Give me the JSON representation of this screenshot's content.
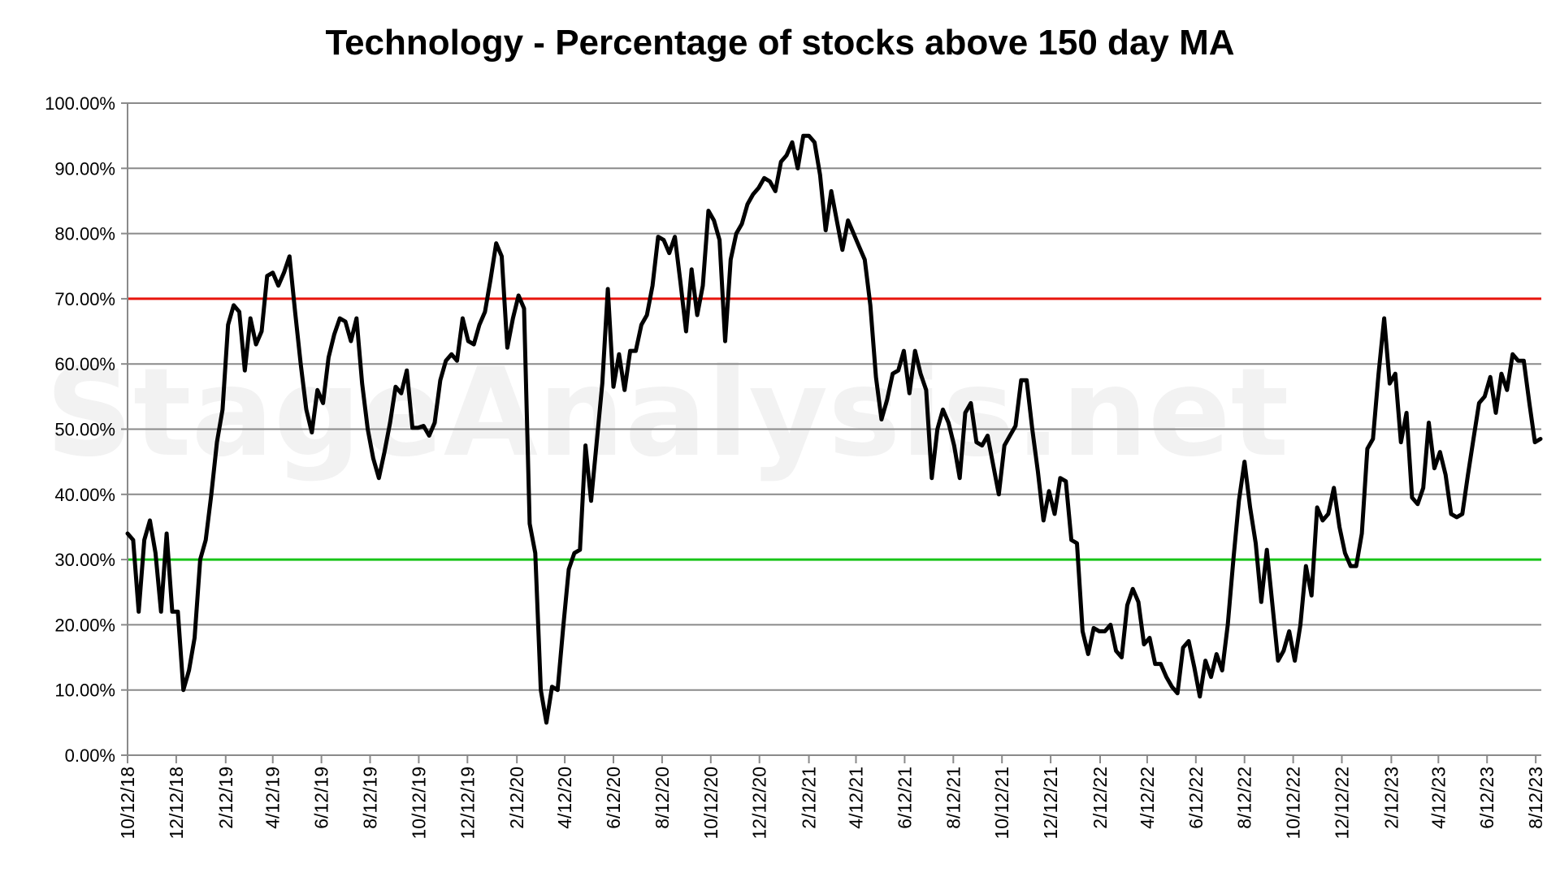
{
  "chart_data": {
    "type": "line",
    "title": "Technology - Percentage of stocks above 150 day MA",
    "watermark": "© StageAnalysis.net",
    "xlabel": "",
    "ylabel": "",
    "ylim": [
      0,
      100
    ],
    "y_tick_values": [
      0,
      10,
      20,
      30,
      40,
      50,
      60,
      70,
      80,
      90,
      100
    ],
    "y_tick_labels": [
      "0.00%",
      "10.00%",
      "20.00%",
      "30.00%",
      "40.00%",
      "50.00%",
      "60.00%",
      "70.00%",
      "80.00%",
      "90.00%",
      "100.00%"
    ],
    "x_tick_labels": [
      "10/12/18",
      "12/12/18",
      "2/12/19",
      "4/12/19",
      "6/12/19",
      "8/12/19",
      "10/12/19",
      "12/12/19",
      "2/12/20",
      "4/12/20",
      "6/12/20",
      "8/12/20",
      "10/12/20",
      "12/12/20",
      "2/12/21",
      "4/12/21",
      "6/12/21",
      "8/12/21",
      "10/12/21",
      "12/12/21",
      "2/12/22",
      "4/12/22",
      "6/12/22",
      "8/12/22",
      "10/12/22",
      "12/12/22",
      "2/12/23",
      "4/12/23",
      "6/12/23",
      "8/12/23"
    ],
    "x_range": [
      "10/12/18",
      "8/19/23"
    ],
    "grid": true,
    "reference_lines": [
      {
        "value": 70,
        "color": "#e8140c"
      },
      {
        "value": 30,
        "color": "#18c418"
      }
    ],
    "series_color": "#000000",
    "series": [
      {
        "name": "",
        "x": [
          "10/12/18",
          "10/19/18",
          "10/26/18",
          "11/2/18",
          "11/9/18",
          "11/16/18",
          "11/23/18",
          "11/30/18",
          "12/7/18",
          "12/14/18",
          "12/21/18",
          "12/28/18",
          "1/4/19",
          "1/11/19",
          "1/18/19",
          "1/25/19",
          "2/1/19",
          "2/8/19",
          "2/15/19",
          "2/22/19",
          "3/1/19",
          "3/8/19",
          "3/15/19",
          "3/22/19",
          "3/29/19",
          "4/5/19",
          "4/12/19",
          "4/19/19",
          "4/26/19",
          "5/3/19",
          "5/10/19",
          "5/17/19",
          "5/24/19",
          "5/31/19",
          "6/7/19",
          "6/14/19",
          "6/21/19",
          "6/28/19",
          "7/5/19",
          "7/12/19",
          "7/19/19",
          "7/26/19",
          "8/2/19",
          "8/9/19",
          "8/16/19",
          "8/23/19",
          "8/30/19",
          "9/6/19",
          "9/13/19",
          "9/20/19",
          "9/27/19",
          "10/4/19",
          "10/11/19",
          "10/18/19",
          "10/25/19",
          "11/1/19",
          "11/8/19",
          "11/15/19",
          "11/22/19",
          "11/29/19",
          "12/6/19",
          "12/13/19",
          "12/20/19",
          "12/27/19",
          "1/3/20",
          "1/10/20",
          "1/17/20",
          "1/24/20",
          "1/31/20",
          "2/7/20",
          "2/14/20",
          "2/21/20",
          "2/28/20",
          "3/6/20",
          "3/13/20",
          "3/20/20",
          "3/27/20",
          "4/3/20",
          "4/10/20",
          "4/17/20",
          "4/24/20",
          "5/1/20",
          "5/8/20",
          "5/15/20",
          "5/22/20",
          "5/29/20",
          "6/5/20",
          "6/12/20",
          "6/19/20",
          "6/26/20",
          "7/3/20",
          "7/10/20",
          "7/17/20",
          "7/24/20",
          "7/31/20",
          "8/7/20",
          "8/14/20",
          "8/21/20",
          "8/28/20",
          "9/4/20",
          "9/11/20",
          "9/18/20",
          "9/25/20",
          "10/2/20",
          "10/9/20",
          "10/16/20",
          "10/23/20",
          "10/30/20",
          "11/6/20",
          "11/13/20",
          "11/20/20",
          "11/27/20",
          "12/4/20",
          "12/11/20",
          "12/18/20",
          "12/25/20",
          "1/1/21",
          "1/8/21",
          "1/15/21",
          "1/22/21",
          "1/29/21",
          "2/5/21",
          "2/12/21",
          "2/19/21",
          "2/26/21",
          "3/5/21",
          "3/12/21",
          "3/19/21",
          "3/26/21",
          "4/2/21",
          "4/9/21",
          "4/16/21",
          "4/23/21",
          "4/30/21",
          "5/7/21",
          "5/14/21",
          "5/21/21",
          "5/28/21",
          "6/4/21",
          "6/11/21",
          "6/18/21",
          "6/25/21",
          "7/2/21",
          "7/9/21",
          "7/16/21",
          "7/23/21",
          "7/30/21",
          "8/6/21",
          "8/13/21",
          "8/20/21",
          "8/27/21",
          "9/3/21",
          "9/10/21",
          "9/17/21",
          "9/24/21",
          "10/1/21",
          "10/8/21",
          "10/15/21",
          "10/22/21",
          "10/29/21",
          "11/5/21",
          "11/12/21",
          "11/19/21",
          "11/26/21",
          "12/3/21",
          "12/10/21",
          "12/17/21",
          "12/24/21",
          "12/31/21",
          "1/7/22",
          "1/14/22",
          "1/21/22",
          "1/28/22",
          "2/4/22",
          "2/11/22",
          "2/18/22",
          "2/25/22",
          "3/4/22",
          "3/11/22",
          "3/18/22",
          "3/25/22",
          "4/1/22",
          "4/8/22",
          "4/15/22",
          "4/22/22",
          "4/29/22",
          "5/6/22",
          "5/13/22",
          "5/20/22",
          "5/27/22",
          "6/3/22",
          "6/10/22",
          "6/17/22",
          "6/24/22",
          "7/1/22",
          "7/8/22",
          "7/15/22",
          "7/22/22",
          "7/29/22",
          "8/5/22",
          "8/12/22",
          "8/19/22",
          "8/26/22",
          "9/2/22",
          "9/9/22",
          "9/16/22",
          "9/23/22",
          "9/30/22",
          "10/7/22",
          "10/14/22",
          "10/21/22",
          "10/28/22",
          "11/4/22",
          "11/11/22",
          "11/18/22",
          "11/25/22",
          "12/2/22",
          "12/9/22",
          "12/16/22",
          "12/23/22",
          "12/30/22",
          "1/6/23",
          "1/13/23",
          "1/20/23",
          "1/27/23",
          "2/3/23",
          "2/10/23",
          "2/17/23",
          "2/24/23",
          "3/3/23",
          "3/10/23",
          "3/17/23",
          "3/24/23",
          "3/31/23",
          "4/7/23",
          "4/14/23",
          "4/21/23",
          "4/28/23",
          "5/5/23",
          "5/12/23",
          "5/19/23",
          "5/26/23",
          "6/2/23",
          "6/9/23",
          "6/16/23",
          "6/23/23",
          "6/30/23",
          "7/7/23",
          "7/14/23",
          "7/21/23",
          "7/28/23",
          "8/4/23",
          "8/11/23",
          "8/18/23"
        ],
        "values": [
          34,
          33,
          22,
          33,
          36,
          31,
          22,
          34,
          22,
          22,
          10,
          13,
          18,
          30,
          33,
          40,
          48,
          53,
          66,
          69,
          68,
          59,
          67,
          63,
          65,
          73.5,
          74,
          72,
          74,
          76.5,
          68,
          60,
          53,
          49.5,
          56,
          54,
          61,
          64.5,
          67,
          66.5,
          63.5,
          67,
          57,
          50,
          45.5,
          42.5,
          46.5,
          51,
          56.5,
          55.5,
          59,
          50.2,
          50.2,
          50.5,
          49,
          51,
          57.5,
          60.5,
          61.5,
          60.5,
          67,
          63.5,
          63,
          66,
          68,
          73,
          78.5,
          76.5,
          62.5,
          67,
          70.5,
          68.5,
          35.5,
          31,
          10,
          5,
          10.5,
          10,
          19.5,
          28.5,
          31,
          31.5,
          47.5,
          39,
          48,
          57,
          71.5,
          56.5,
          61.5,
          56,
          62,
          62,
          66,
          67.5,
          72,
          79.5,
          79,
          77,
          79.5,
          72.5,
          65,
          74.5,
          67.5,
          72,
          83.5,
          82,
          79,
          63.5,
          76,
          80,
          81.5,
          84.5,
          86,
          87,
          88.5,
          88,
          86.5,
          91,
          92,
          94,
          90,
          95,
          95,
          94,
          89,
          80.5,
          86.5,
          82,
          77.5,
          82,
          80,
          78,
          76,
          69,
          58,
          51.5,
          54.5,
          58.5,
          59,
          62,
          55.5,
          62,
          58.5,
          56,
          42.5,
          50,
          53,
          51,
          47.5,
          42.5,
          52.5,
          54,
          48,
          47.5,
          49,
          44.5,
          40,
          47.5,
          49,
          50.5,
          57.5,
          57.5,
          50,
          43.5,
          36,
          40.5,
          37,
          42.5,
          42,
          33,
          32.5,
          19,
          15.5,
          19.5,
          19,
          19,
          20,
          16,
          15,
          23,
          25.5,
          23.5,
          17,
          18,
          14,
          14,
          12,
          10.5,
          9.5,
          16.5,
          17.5,
          13.5,
          9,
          14.5,
          12,
          15.5,
          13,
          20,
          30,
          39,
          45,
          38,
          32.5,
          23.5,
          31.5,
          23,
          14.5,
          16,
          19,
          14.5,
          20,
          29,
          24.5,
          38,
          36,
          37,
          41,
          35,
          31,
          29,
          29,
          34,
          47,
          48.5,
          58.5,
          67,
          57,
          58.5,
          48,
          52.5,
          39.5,
          38.5,
          41,
          51,
          44,
          46.5,
          43,
          37,
          36.5,
          37,
          43,
          48.5,
          54,
          55,
          58,
          52.5,
          58.5,
          56,
          61.5,
          60.5,
          60.5,
          54,
          48,
          48.5
        ]
      }
    ]
  }
}
